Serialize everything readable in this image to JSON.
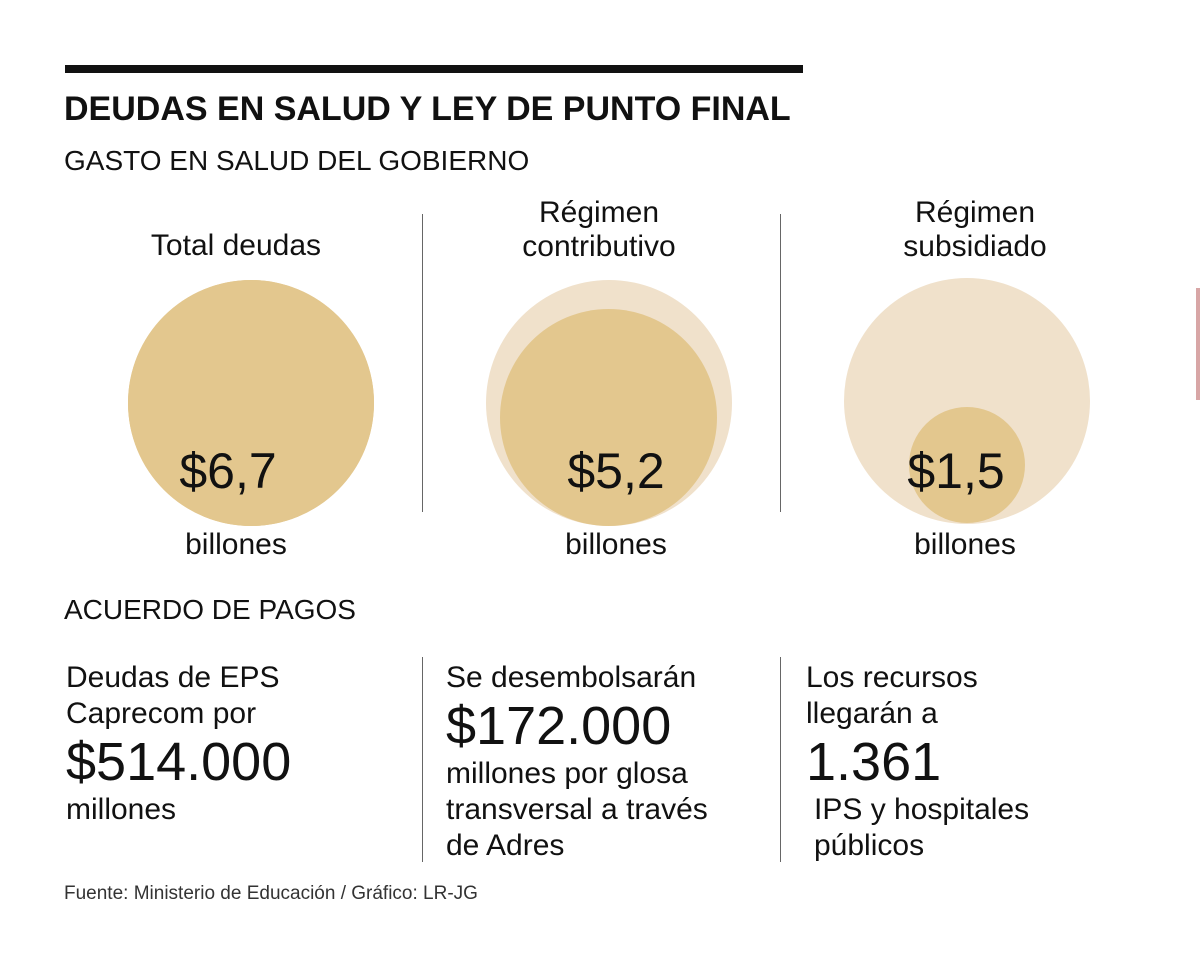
{
  "title": "DEUDAS EN SALUD Y LEY DE PUNTO FINAL",
  "subtitle": "GASTO EN SALUD DEL GOBIERNO",
  "chart_data": {
    "type": "bubble",
    "unit": "billones",
    "colors": {
      "value": "#e3c78e",
      "total": "#f0e1cb"
    },
    "items": [
      {
        "label_lines": [
          "Total deudas"
        ],
        "value": 6.7,
        "value_label": "$6,7",
        "unit": "billones",
        "compare_total": 6.7
      },
      {
        "label_lines": [
          "Régimen",
          "contributivo"
        ],
        "value": 5.2,
        "value_label": "$5,2",
        "unit": "billones",
        "compare_total": 6.7
      },
      {
        "label_lines": [
          "Régimen",
          "subsidiado"
        ],
        "value": 1.5,
        "value_label": "$1,5",
        "unit": "billones",
        "compare_total": 6.7
      }
    ]
  },
  "payments": {
    "heading": "ACUERDO DE PAGOS",
    "items": [
      {
        "pre_lines": [
          "Deudas de EPS",
          "Caprecom por"
        ],
        "amount": "$514.000",
        "post_lines": [
          "millones"
        ]
      },
      {
        "pre_lines": [
          "Se desembolsarán"
        ],
        "amount": "$172.000",
        "post_lines": [
          "millones por glosa",
          "transversal a través",
          "de Adres"
        ]
      },
      {
        "pre_lines": [
          "Los recursos",
          "llegarán a"
        ],
        "amount": "1.361",
        "post_lines": [
          "IPS y hospitales",
          "públicos"
        ]
      }
    ]
  },
  "source": "Fuente: Ministerio de Educación / Gráfico: LR-JG"
}
